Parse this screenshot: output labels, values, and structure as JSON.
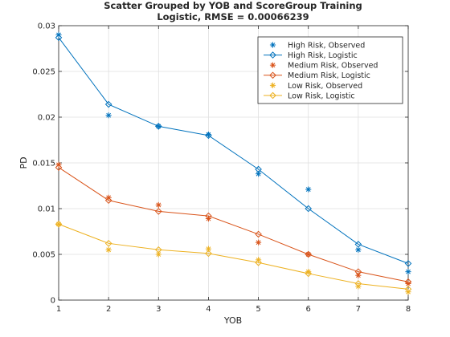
{
  "chart_data": {
    "type": "scatter",
    "title": "Scatter Grouped by YOB and ScoreGroup Training",
    "subtitle": "Logistic, RMSE = 0.00066239",
    "xlabel": "YOB",
    "ylabel": "PD",
    "xlim": [
      1,
      8
    ],
    "ylim": [
      0,
      0.03
    ],
    "xticks": [
      "1",
      "2",
      "3",
      "4",
      "5",
      "6",
      "7",
      "8"
    ],
    "yticks": [
      "0",
      "0.005",
      "0.01",
      "0.015",
      "0.02",
      "0.025",
      "0.03"
    ],
    "grid": true,
    "legend_position": "top-right",
    "x": [
      1,
      2,
      3,
      4,
      5,
      6,
      7,
      8
    ],
    "series": [
      {
        "name": "High Risk, Observed",
        "kind": "observed",
        "marker": "asterisk",
        "color": "#0072BD",
        "values": [
          0.029,
          0.0202,
          0.019,
          0.0181,
          0.0138,
          0.0121,
          0.0055,
          0.0031
        ]
      },
      {
        "name": "High Risk, Logistic",
        "kind": "fitted",
        "marker": "diamond",
        "color": "#0072BD",
        "values": [
          0.0287,
          0.0214,
          0.019,
          0.018,
          0.0143,
          0.01,
          0.0061,
          0.004
        ]
      },
      {
        "name": "Medium Risk, Observed",
        "kind": "observed",
        "marker": "asterisk",
        "color": "#D95319",
        "values": [
          0.0148,
          0.0112,
          0.0104,
          0.0089,
          0.0063,
          0.005,
          0.0027,
          0.0018
        ]
      },
      {
        "name": "Medium Risk, Logistic",
        "kind": "fitted",
        "marker": "diamond",
        "color": "#D95319",
        "values": [
          0.0145,
          0.0109,
          0.0097,
          0.0092,
          0.0072,
          0.005,
          0.0031,
          0.002
        ]
      },
      {
        "name": "Low Risk, Observed",
        "kind": "observed",
        "marker": "asterisk",
        "color": "#EDB120",
        "values": [
          0.0083,
          0.0055,
          0.005,
          0.0056,
          0.0044,
          0.0031,
          0.0015,
          0.0009
        ]
      },
      {
        "name": "Low Risk, Logistic",
        "kind": "fitted",
        "marker": "diamond",
        "color": "#EDB120",
        "values": [
          0.0083,
          0.0062,
          0.0055,
          0.0051,
          0.0041,
          0.0029,
          0.0018,
          0.0012
        ]
      }
    ]
  }
}
